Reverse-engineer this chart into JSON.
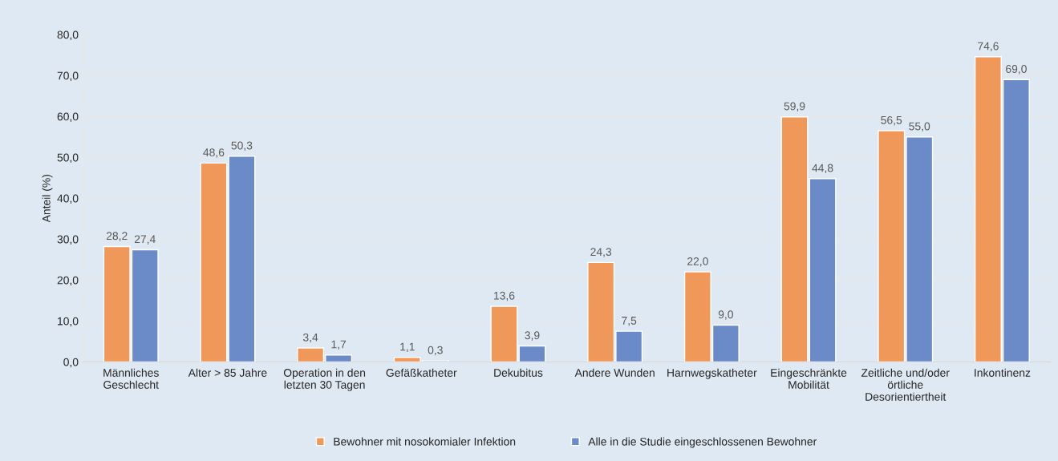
{
  "chart_data": {
    "type": "bar",
    "ylabel": "Anteil (%)",
    "categories": [
      "Männliches\nGeschlecht",
      "Alter > 85 Jahre",
      "Operation in den\nletzten 30 Tagen",
      "Gefäßkatheter",
      "Dekubitus",
      "Andere Wunden",
      "Harnwegskatheter",
      "Eingeschränkte\nMobilität",
      "Zeitliche und/oder\nörtliche\nDesorientiertheit",
      "Inkontinenz"
    ],
    "series": [
      {
        "name": "Bewohner mit nosokomialer Infektion",
        "color": "#f0975a",
        "values": [
          28.2,
          48.6,
          3.4,
          1.1,
          13.6,
          24.3,
          22.0,
          59.9,
          56.5,
          74.6
        ],
        "value_labels": [
          "28,2",
          "48,6",
          "3,4",
          "1,1",
          "13,6",
          "24,3",
          "22,0",
          "59,9",
          "56,5",
          "74,6"
        ]
      },
      {
        "name": "Alle in die Studie eingeschlossenen Bewohner",
        "color": "#6a8bc7",
        "values": [
          27.4,
          50.3,
          1.7,
          0.3,
          3.9,
          7.5,
          9.0,
          44.8,
          55.0,
          69.0
        ],
        "value_labels": [
          "27,4",
          "50,3",
          "1,7",
          "0,3",
          "3,9",
          "7,5",
          "9,0",
          "44,8",
          "55,0",
          "69,0"
        ]
      }
    ],
    "ylim": [
      0,
      80
    ],
    "yticks": [
      {
        "value": 0,
        "label": "0,0"
      },
      {
        "value": 10,
        "label": "10,0"
      },
      {
        "value": 20,
        "label": "20,0"
      },
      {
        "value": 30,
        "label": "30,0"
      },
      {
        "value": 40,
        "label": "40,0"
      },
      {
        "value": 50,
        "label": "50,0"
      },
      {
        "value": 60,
        "label": "60,0"
      },
      {
        "value": 70,
        "label": "70,0"
      },
      {
        "value": 80,
        "label": "80,0"
      }
    ],
    "grid": "y",
    "legend": "bottom"
  }
}
